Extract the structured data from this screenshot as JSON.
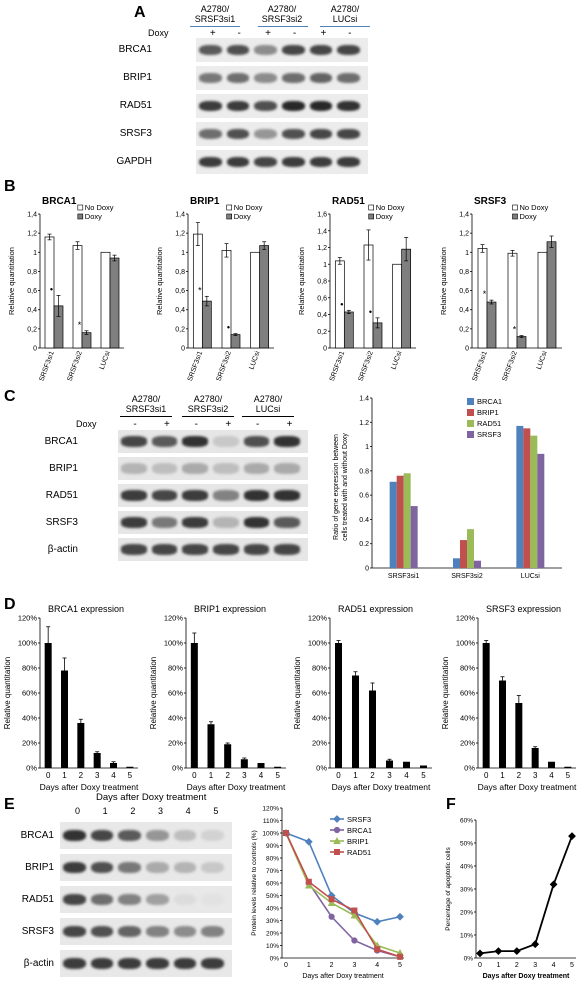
{
  "panels": {
    "A": "A",
    "B": "B",
    "C": "C",
    "D": "D",
    "E": "E",
    "F": "F"
  },
  "panelA": {
    "groups": [
      "A2780/\nSRSF3si1",
      "A2780/\nSRSF3si2",
      "A2780/\nLUCsi"
    ],
    "doxy_label": "Doxy",
    "signs": [
      "+",
      "-",
      "+",
      "-",
      "+",
      "-"
    ],
    "rows": [
      "BRCA1",
      "BRIP1",
      "RAD51",
      "SRSF3",
      "GAPDH"
    ]
  },
  "panelC": {
    "groups": [
      "A2780/\nSRSF3si1",
      "A2780/\nSRSF3si2",
      "A2780/\nLUCsi"
    ],
    "doxy_label": "Doxy",
    "signs": [
      "-",
      "+",
      "-",
      "+",
      "-",
      "+"
    ],
    "rows": [
      "BRCA1",
      "BRIP1",
      "RAD51",
      "SRSF3",
      "β-actin"
    ]
  },
  "panelE": {
    "header": "Days after Doxy treatment",
    "days": [
      "0",
      "1",
      "2",
      "3",
      "4",
      "5"
    ],
    "rows": [
      "BRCA1",
      "BRIP1",
      "RAD51",
      "SRSF3",
      "β-actin"
    ]
  },
  "chart_data": [
    {
      "id": "B-BRCA1",
      "type": "bar",
      "title": "BRCA1",
      "ylabel": "Relative quantitation",
      "categories": [
        "SRSF3si1",
        "SRSF3si2",
        "LUCsi"
      ],
      "ylim": [
        0,
        1.4
      ],
      "yticks": [
        "0",
        "0,2",
        "0,4",
        "0,6",
        "0,8",
        "1",
        "1,2",
        "1,4"
      ],
      "legend": [
        "No Doxy",
        "Doxy"
      ],
      "series": [
        {
          "name": "No Doxy",
          "values": [
            1.16,
            1.07,
            1.0
          ],
          "err": [
            0.03,
            0.04,
            0.0
          ]
        },
        {
          "name": "Doxy",
          "values": [
            0.44,
            0.16,
            0.94
          ],
          "err": [
            0.11,
            0.02,
            0.03
          ]
        }
      ],
      "markers": [
        "•",
        "*",
        ""
      ]
    },
    {
      "id": "B-BRIP1",
      "type": "bar",
      "title": "BRIP1",
      "ylabel": "Relative quantitation",
      "categories": [
        "SRSF3si1",
        "SRSF3si2",
        "LUCsi"
      ],
      "ylim": [
        0,
        1.4
      ],
      "yticks": [
        "0",
        "0,2",
        "0,4",
        "0,6",
        "0,8",
        "1",
        "1,2",
        "1,4"
      ],
      "legend": [
        "No Doxy",
        "Doxy"
      ],
      "series": [
        {
          "name": "No Doxy",
          "values": [
            1.19,
            1.02,
            1.0
          ],
          "err": [
            0.12,
            0.07,
            0.0
          ]
        },
        {
          "name": "Doxy",
          "values": [
            0.49,
            0.14,
            1.07
          ],
          "err": [
            0.05,
            0.01,
            0.04
          ]
        }
      ],
      "markers": [
        "*",
        "•",
        ""
      ]
    },
    {
      "id": "B-RAD51",
      "type": "bar",
      "title": "RAD51",
      "ylabel": "Relative quantitation",
      "categories": [
        "SRSF3si1",
        "SRSF3si2",
        "LUCsi"
      ],
      "ylim": [
        0,
        1.6
      ],
      "yticks": [
        "0",
        "0,2",
        "0,4",
        "0,6",
        "0,8",
        "1",
        "1,2",
        "1,4",
        "1,6"
      ],
      "legend": [
        "No Doxy",
        "Doxy"
      ],
      "series": [
        {
          "name": "No Doxy",
          "values": [
            1.04,
            1.23,
            1.0
          ],
          "err": [
            0.04,
            0.18,
            0.0
          ]
        },
        {
          "name": "Doxy",
          "values": [
            0.43,
            0.3,
            1.18
          ],
          "err": [
            0.02,
            0.06,
            0.14
          ]
        }
      ],
      "markers": [
        "•",
        "•",
        ""
      ]
    },
    {
      "id": "B-SRSF3",
      "type": "bar",
      "title": "SRSF3",
      "ylabel": "Relative quantitation",
      "categories": [
        "SRSF3si1",
        "SRSF3si2",
        "LUCsi"
      ],
      "ylim": [
        0,
        1.4
      ],
      "yticks": [
        "0",
        "0,2",
        "0,4",
        "0,6",
        "0,8",
        "1",
        "1,2",
        "1,4"
      ],
      "legend": [
        "No Doxy",
        "Doxy"
      ],
      "series": [
        {
          "name": "No Doxy",
          "values": [
            1.04,
            0.99,
            1.0
          ],
          "err": [
            0.04,
            0.03,
            0.0
          ]
        },
        {
          "name": "Doxy",
          "values": [
            0.48,
            0.12,
            1.11
          ],
          "err": [
            0.02,
            0.01,
            0.06
          ]
        }
      ],
      "markers": [
        "*",
        "*",
        ""
      ]
    },
    {
      "id": "C-ratio",
      "type": "bar",
      "title": "",
      "ylabel": "Ratio of gene expression between cells treated with and without Doxy",
      "categories": [
        "SRSF3si1",
        "SRSF3si2",
        "LUCsi"
      ],
      "ylim": [
        0,
        1.4
      ],
      "yticks": [
        "0",
        "0.2",
        "0.4",
        "0.6",
        "0.8",
        "1",
        "1.2",
        "1.4"
      ],
      "legend": [
        "BRCA1",
        "BRIP1",
        "RAD51",
        "SRSF3"
      ],
      "colors": [
        "#4f81bd",
        "#c0504d",
        "#9bbb59",
        "#8064a2"
      ],
      "series": [
        {
          "name": "BRCA1",
          "values": [
            0.71,
            0.08,
            1.17
          ]
        },
        {
          "name": "BRIP1",
          "values": [
            0.76,
            0.23,
            1.15
          ]
        },
        {
          "name": "RAD51",
          "values": [
            0.78,
            0.32,
            1.09
          ]
        },
        {
          "name": "SRSF3",
          "values": [
            0.51,
            0.06,
            0.94
          ]
        }
      ]
    },
    {
      "id": "D-BRCA1",
      "type": "bar",
      "title": "BRCA1 expression",
      "ylabel": "Relative quantitation",
      "xlabel": "Days after Doxy treatment",
      "categories": [
        "0",
        "1",
        "2",
        "3",
        "4",
        "5"
      ],
      "ylim": [
        0,
        120
      ],
      "yticks": [
        "0%",
        "20%",
        "40%",
        "60%",
        "80%",
        "100%",
        "120%"
      ],
      "values": [
        100,
        78,
        36,
        12,
        4,
        1
      ],
      "err": [
        13,
        10,
        3,
        1,
        1,
        0
      ]
    },
    {
      "id": "D-BRIP1",
      "type": "bar",
      "title": "BRIP1 expression",
      "ylabel": "Relative quantitation",
      "xlabel": "Days after Doxy treatment",
      "categories": [
        "0",
        "1",
        "2",
        "3",
        "4",
        "5"
      ],
      "ylim": [
        0,
        120
      ],
      "yticks": [
        "0%",
        "20%",
        "40%",
        "60%",
        "80%",
        "100%",
        "120%"
      ],
      "values": [
        100,
        35,
        19,
        7,
        4,
        1
      ],
      "err": [
        8,
        2,
        1,
        1,
        0,
        0
      ]
    },
    {
      "id": "D-RAD51",
      "type": "bar",
      "title": "RAD51 expression",
      "ylabel": "Relative quantitation",
      "xlabel": "Days after Doxy treatment",
      "categories": [
        "0",
        "1",
        "2",
        "3",
        "4",
        "5"
      ],
      "ylim": [
        0,
        120
      ],
      "yticks": [
        "0%",
        "20%",
        "40%",
        "60%",
        "80%",
        "100%",
        "120%"
      ],
      "values": [
        100,
        74,
        62,
        6,
        5,
        2
      ],
      "err": [
        2,
        3,
        6,
        1,
        0,
        0
      ]
    },
    {
      "id": "D-SRSF3",
      "type": "bar",
      "title": "SRSF3 expression",
      "ylabel": "Relative quantitation",
      "xlabel": "Days after Doxy treatment",
      "categories": [
        "0",
        "1",
        "2",
        "3",
        "4",
        "5"
      ],
      "ylim": [
        0,
        120
      ],
      "yticks": [
        "0%",
        "20%",
        "40%",
        "60%",
        "80%",
        "100%",
        "120%"
      ],
      "values": [
        100,
        70,
        52,
        16,
        5,
        1
      ],
      "err": [
        2,
        3,
        6,
        1,
        0,
        0
      ]
    },
    {
      "id": "E-lines",
      "type": "line",
      "title": "",
      "ylabel": "Protein levels relative to controls (%)",
      "xlabel": "Days after Doxy treatment",
      "x": [
        0,
        1,
        2,
        3,
        4,
        5
      ],
      "ylim": [
        0,
        120
      ],
      "yticks": [
        "0%",
        "10%",
        "20%",
        "30%",
        "40%",
        "50%",
        "60%",
        "70%",
        "80%",
        "90%",
        "100%",
        "110%",
        "120%"
      ],
      "series": [
        {
          "name": "SRSF3",
          "color": "#4f81bd",
          "marker": "diamond",
          "values": [
            100,
            93,
            50,
            36,
            29,
            33
          ]
        },
        {
          "name": "BRCA1",
          "color": "#8064a2",
          "marker": "circle",
          "values": [
            100,
            60,
            33,
            14,
            6,
            1
          ]
        },
        {
          "name": "BRIP1",
          "color": "#9bbb59",
          "marker": "triangle",
          "values": [
            100,
            58,
            44,
            34,
            10,
            4
          ]
        },
        {
          "name": "RAD51",
          "color": "#c0504d",
          "marker": "square",
          "values": [
            100,
            61,
            47,
            38,
            7,
            1
          ]
        }
      ]
    },
    {
      "id": "F-line",
      "type": "line",
      "title": "",
      "ylabel": "Percentage of apoptotic cells",
      "xlabel": "Days after Doxy treatment",
      "x": [
        0,
        1,
        2,
        3,
        4,
        5
      ],
      "ylim": [
        0,
        60
      ],
      "yticks": [
        "0%",
        "10%",
        "20%",
        "30%",
        "40%",
        "50%",
        "60%"
      ],
      "series": [
        {
          "name": "",
          "color": "#000000",
          "marker": "diamond",
          "values": [
            2,
            3,
            3,
            6,
            32,
            53
          ]
        }
      ]
    }
  ]
}
